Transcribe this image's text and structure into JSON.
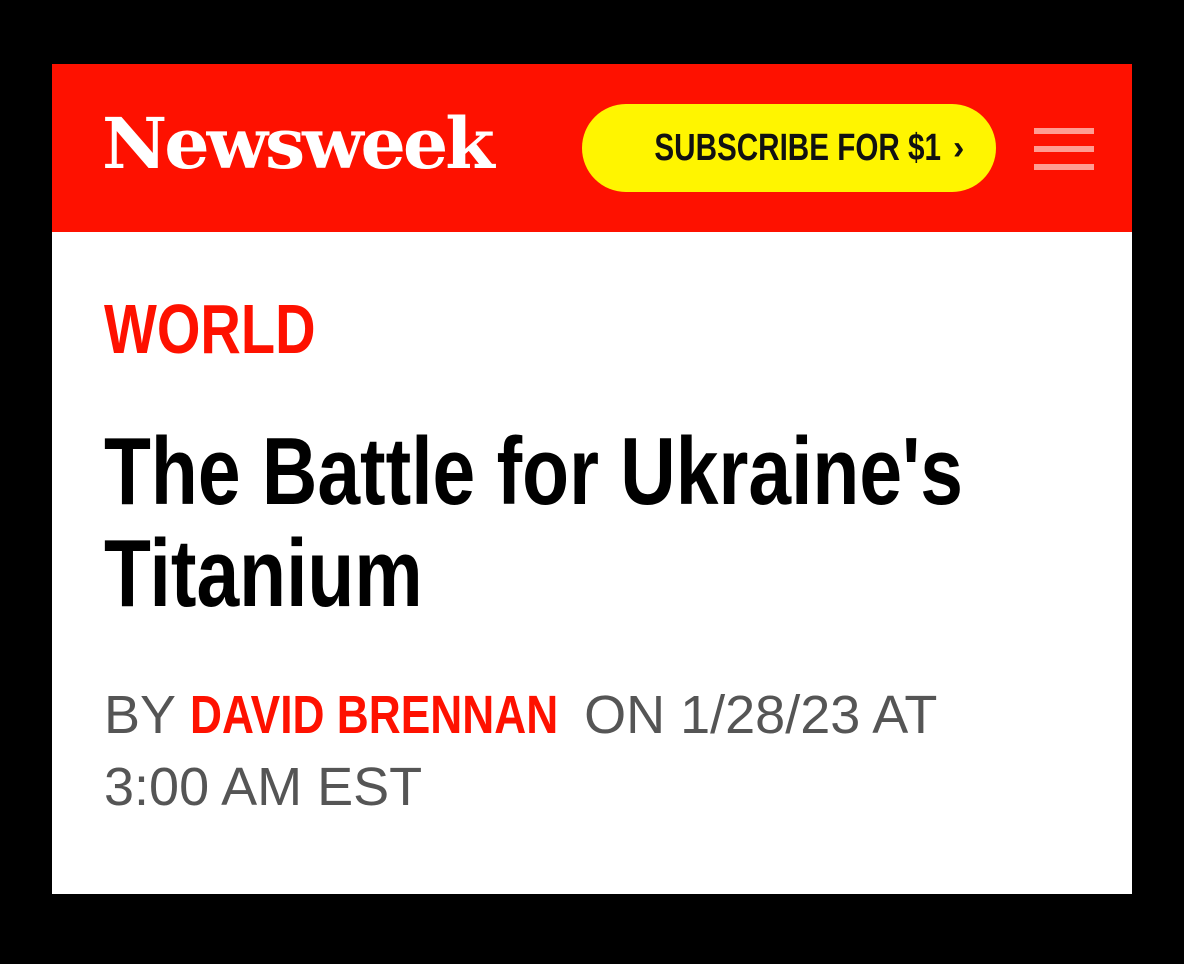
{
  "header": {
    "logo": "Newsweek",
    "subscribe_label": "SUBSCRIBE FOR $1",
    "subscribe_chevron": "›",
    "menu_icon": "hamburger-menu-icon",
    "brand_color": "#fe1100",
    "button_color": "#fff500"
  },
  "article": {
    "section": "WORLD",
    "headline": "The Battle for Ukraine's Titanium",
    "byline_prefix": "BY",
    "author": "DAVID BRENNAN",
    "byline_on": "ON 1/28/23 AT",
    "byline_time": "3:00 AM EST"
  }
}
